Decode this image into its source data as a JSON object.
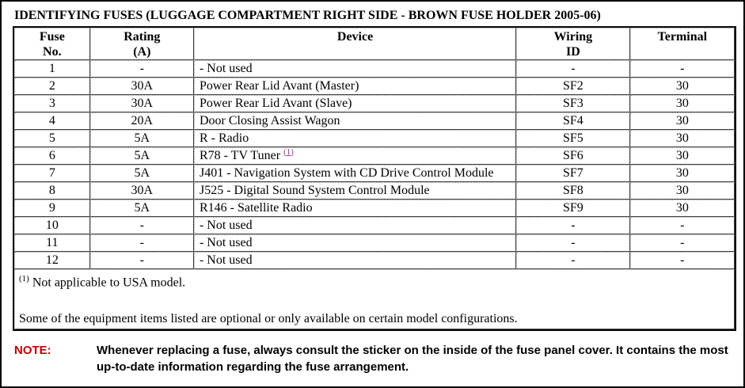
{
  "page": {
    "title": "IDENTIFYING FUSES (LUGGAGE COMPARTMENT RIGHT SIDE - BROWN FUSE HOLDER 2005-06)"
  },
  "table": {
    "headers": [
      "Fuse\nNo.",
      "Rating\n(A)",
      "Device",
      "Wiring\nID",
      "Terminal"
    ],
    "rows": [
      {
        "no": "1",
        "rating": "-",
        "device": "- Not used",
        "wiring": "-",
        "terminal": "-"
      },
      {
        "no": "2",
        "rating": "30A",
        "device": "Power Rear Lid Avant (Master)",
        "wiring": "SF2",
        "terminal": "30"
      },
      {
        "no": "3",
        "rating": "30A",
        "device": "Power Rear Lid Avant (Slave)",
        "wiring": "SF3",
        "terminal": "30"
      },
      {
        "no": "4",
        "rating": "20A",
        "device": "Door Closing Assist Wagon",
        "wiring": "SF4",
        "terminal": "30"
      },
      {
        "no": "5",
        "rating": "5A",
        "device": "R - Radio",
        "wiring": "SF5",
        "terminal": "30"
      },
      {
        "no": "6",
        "rating": "5A",
        "device": "R78 - TV Tuner",
        "device_note_ref": "(1)",
        "wiring": "SF6",
        "terminal": "30"
      },
      {
        "no": "7",
        "rating": "5A",
        "device": "J401 - Navigation System with CD Drive Control Module",
        "wiring": "SF7",
        "terminal": "30"
      },
      {
        "no": "8",
        "rating": "30A",
        "device": "J525 - Digital Sound System Control Module",
        "wiring": "SF8",
        "terminal": "30"
      },
      {
        "no": "9",
        "rating": "5A",
        "device": "R146 - Satellite Radio",
        "wiring": "SF9",
        "terminal": "30"
      },
      {
        "no": "10",
        "rating": "-",
        "device": "- Not used",
        "wiring": "-",
        "terminal": "-"
      },
      {
        "no": "11",
        "rating": "-",
        "device": "- Not used",
        "wiring": "-",
        "terminal": "-"
      },
      {
        "no": "12",
        "rating": "-",
        "device": "- Not used",
        "wiring": "-",
        "terminal": "-"
      }
    ],
    "footnote_marker": "(1)",
    "footnote_text": " Not applicable to USA model.",
    "footer_note": "Some of the equipment items listed are optional or only available on certain model configurations."
  },
  "note": {
    "label": "NOTE:",
    "text": "Whenever replacing a fuse, always consult the sticker on the inside of the fuse panel cover. It contains the most up-to-date information regarding the fuse arrangement."
  },
  "colors": {
    "note_label": "#c00000",
    "footnote_link": "#993399",
    "border": "#000000"
  }
}
